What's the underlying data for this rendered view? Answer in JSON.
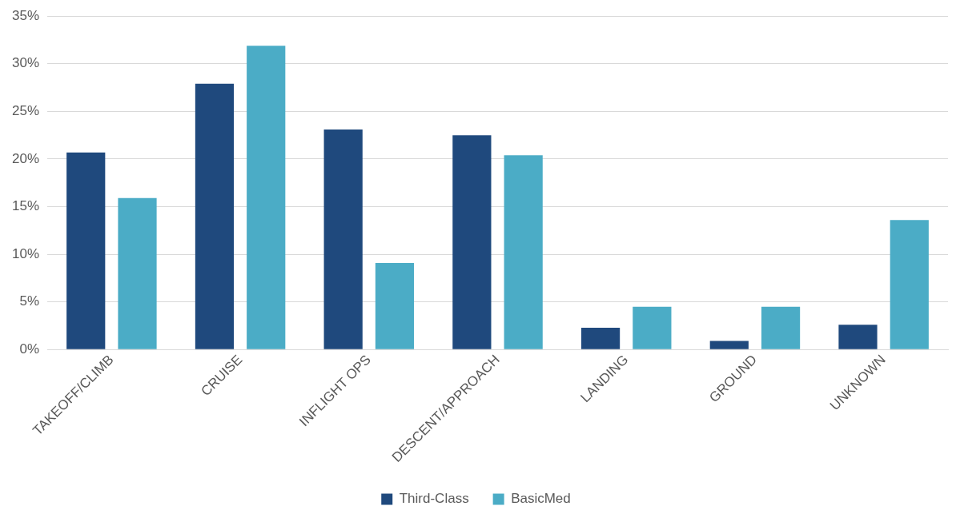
{
  "chart_data": {
    "type": "bar",
    "categories": [
      "TAKEOFF/CLIMB",
      "CRUISE",
      "INFLIGHT OPS",
      "DESCENT/APPROACH",
      "LANDING",
      "GROUND",
      "UNKNOWN"
    ],
    "series": [
      {
        "name": "Third-Class",
        "color": "#1f497d",
        "values": [
          20.7,
          27.9,
          23.1,
          22.5,
          2.3,
          0.9,
          2.6
        ]
      },
      {
        "name": "BasicMed",
        "color": "#4bacc6",
        "values": [
          15.9,
          31.9,
          9.1,
          20.4,
          4.5,
          4.5,
          13.6
        ]
      }
    ],
    "ylim": [
      0,
      35
    ],
    "yticks": [
      {
        "value": 0,
        "label": "0%"
      },
      {
        "value": 5,
        "label": "5%"
      },
      {
        "value": 10,
        "label": "10%"
      },
      {
        "value": 15,
        "label": "15%"
      },
      {
        "value": 20,
        "label": "20%"
      },
      {
        "value": 25,
        "label": "25%"
      },
      {
        "value": 30,
        "label": "30%"
      },
      {
        "value": 35,
        "label": "35%"
      }
    ],
    "grid": "y",
    "legend": "bottom"
  }
}
